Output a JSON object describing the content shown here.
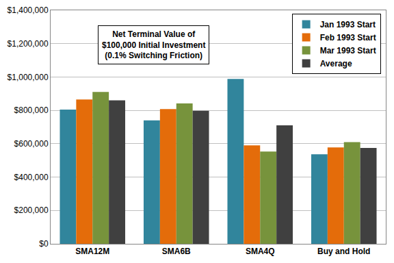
{
  "chart_data": {
    "type": "bar",
    "title": "Net Terminal Value of $100,000 Initial Investment",
    "subtitle": "(0.1% Switching Friction)",
    "categories": [
      "SMA12M",
      "SMA6B",
      "SMA4Q",
      "Buy and Hold"
    ],
    "series": [
      {
        "name": "Jan 1993 Start",
        "color": "#31859c",
        "values": [
          805000,
          740000,
          988000,
          537000
        ]
      },
      {
        "name": "Feb 1993 Start",
        "color": "#e46c0a",
        "values": [
          865000,
          808000,
          590000,
          578000
        ]
      },
      {
        "name": "Mar 1993 Start",
        "color": "#77933c",
        "values": [
          910000,
          842000,
          553000,
          610000
        ]
      },
      {
        "name": "Average",
        "color": "#404040",
        "values": [
          860000,
          797000,
          710000,
          575000
        ]
      }
    ],
    "ylim": [
      0,
      1400000
    ],
    "yticks": [
      {
        "value": 0,
        "label": "$0"
      },
      {
        "value": 200000,
        "label": "$200,000"
      },
      {
        "value": 400000,
        "label": "$400,000"
      },
      {
        "value": 600000,
        "label": "$600,000"
      },
      {
        "value": 800000,
        "label": "$800,000"
      },
      {
        "value": 1000000,
        "label": "$1,000,000"
      },
      {
        "value": 1200000,
        "label": "$1,200,000"
      },
      {
        "value": 1400000,
        "label": "$1,400,000"
      }
    ],
    "grid": true,
    "legend": "top right"
  }
}
